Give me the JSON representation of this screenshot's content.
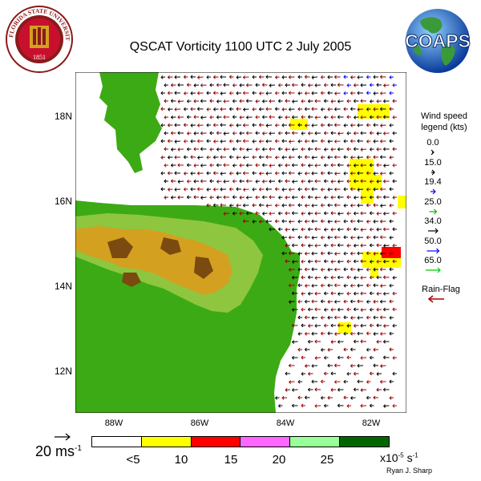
{
  "title": "QSCAT Vorticity 1100 UTC 2 July 2005",
  "logos": {
    "left": {
      "name": "florida-state-university-seal",
      "ring_text": "FLORIDA STATE UNIVERSITY",
      "year": "1851"
    },
    "right": {
      "name": "coaps-globe",
      "text": "COAPS"
    }
  },
  "map": {
    "lat_labels": [
      "18N",
      "16N",
      "14N",
      "12N"
    ],
    "lon_labels": [
      "88W",
      "86W",
      "84W",
      "82W"
    ],
    "colors": {
      "ocean": "#ffffff",
      "land": "#3caa14",
      "highland": "#d4a020",
      "peak": "#7a4a10",
      "vort_low": "#ffff00",
      "vort_mid": "#ff0000"
    }
  },
  "wind_legend": {
    "title_line1": "Wind speed",
    "title_line2": "legend (kts)",
    "entries": [
      {
        "value": "0.0",
        "color": "#000000"
      },
      {
        "value": "15.0",
        "color": "#000000"
      },
      {
        "value": "19.4",
        "color": "#0000ff"
      },
      {
        "value": "25.0",
        "color": "#00bb00"
      },
      {
        "value": "34.0",
        "color": "#000000"
      },
      {
        "value": "50.0",
        "color": "#0000ff"
      },
      {
        "value": "65.0",
        "color": "#00cc00"
      }
    ],
    "rain_flag_label": "Rain-Flag",
    "rain_flag_color": "#aa0000"
  },
  "scale": {
    "value": "20 ms",
    "exponent": "-1"
  },
  "colorbar": {
    "colors": [
      "#ffffff",
      "#ffff00",
      "#ff0000",
      "#ff66ff",
      "#99ff99",
      "#006600"
    ],
    "labels": [
      "<5",
      "10",
      "15",
      "20",
      "25"
    ],
    "units_prefix": "x10",
    "units_exp": "-5",
    "units_suffix": " s",
    "units_exp2": "-1"
  },
  "author": "Ryan J. Sharp"
}
